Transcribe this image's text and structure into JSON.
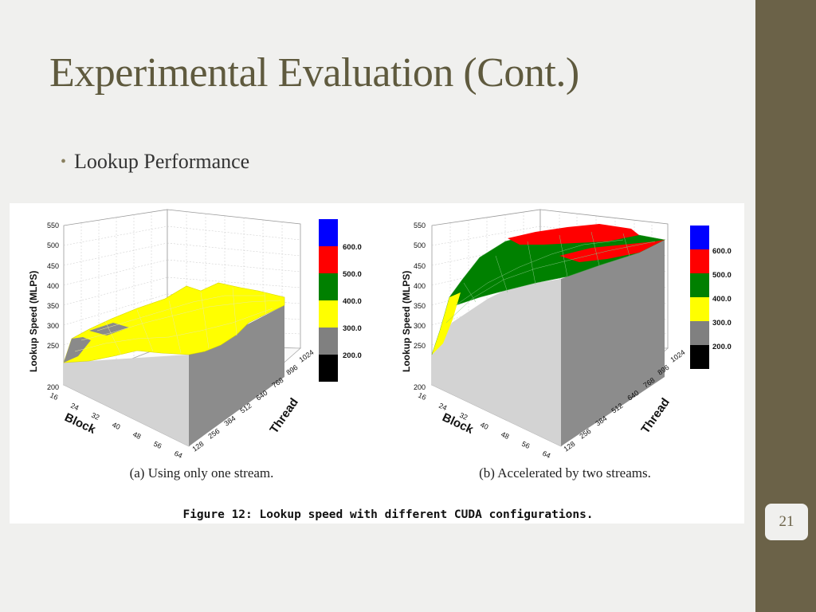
{
  "slide": {
    "title": "Experimental Evaluation (Cont.)",
    "bullet": "Lookup Performance",
    "page_number": "21",
    "colors": {
      "sidebar": "#6b6248",
      "title": "#5f5a3e",
      "background": "#f0f0ee"
    }
  },
  "figure": {
    "caption": "Figure 12:  Lookup speed with different CUDA configurations."
  },
  "chart_data": [
    {
      "type": "surface3d",
      "caption": "(a) Using only one stream.",
      "zlabel": "Lookup Speed (MLPS)",
      "xlabel": "Block",
      "ylabel": "Thread",
      "zlim": [
        200,
        550
      ],
      "z_ticks": [
        200,
        250,
        300,
        350,
        400,
        450,
        500,
        550
      ],
      "x_ticks": [
        "16",
        "24",
        "32",
        "40",
        "48",
        "56",
        "64"
      ],
      "y_ticks": [
        "128",
        "256",
        "384",
        "512",
        "640",
        "768",
        "896",
        "1024"
      ],
      "colorbar": {
        "labels": [
          "600.0",
          "500.0",
          "400.0",
          "300.0",
          "200.0"
        ],
        "colors": [
          "#0000ff",
          "#ff0000",
          "#008000",
          "#ffff00",
          "#808080",
          "#000000"
        ]
      },
      "approx_speed_range": [
        260,
        390
      ]
    },
    {
      "type": "surface3d",
      "caption": "(b) Accelerated by two streams.",
      "zlabel": "Lookup Speed (MLPS)",
      "xlabel": "Block",
      "ylabel": "Thread",
      "zlim": [
        200,
        550
      ],
      "z_ticks": [
        200,
        250,
        300,
        350,
        400,
        450,
        500,
        550
      ],
      "x_ticks": [
        "16",
        "24",
        "32",
        "40",
        "48",
        "56",
        "64"
      ],
      "y_ticks": [
        "128",
        "256",
        "384",
        "512",
        "640",
        "768",
        "896",
        "1024"
      ],
      "colorbar": {
        "labels": [
          "600.0",
          "500.0",
          "400.0",
          "300.0",
          "200.0"
        ],
        "colors": [
          "#0000ff",
          "#ff0000",
          "#008000",
          "#ffff00",
          "#808080",
          "#000000"
        ]
      },
      "approx_speed_range": [
        260,
        520
      ]
    }
  ]
}
